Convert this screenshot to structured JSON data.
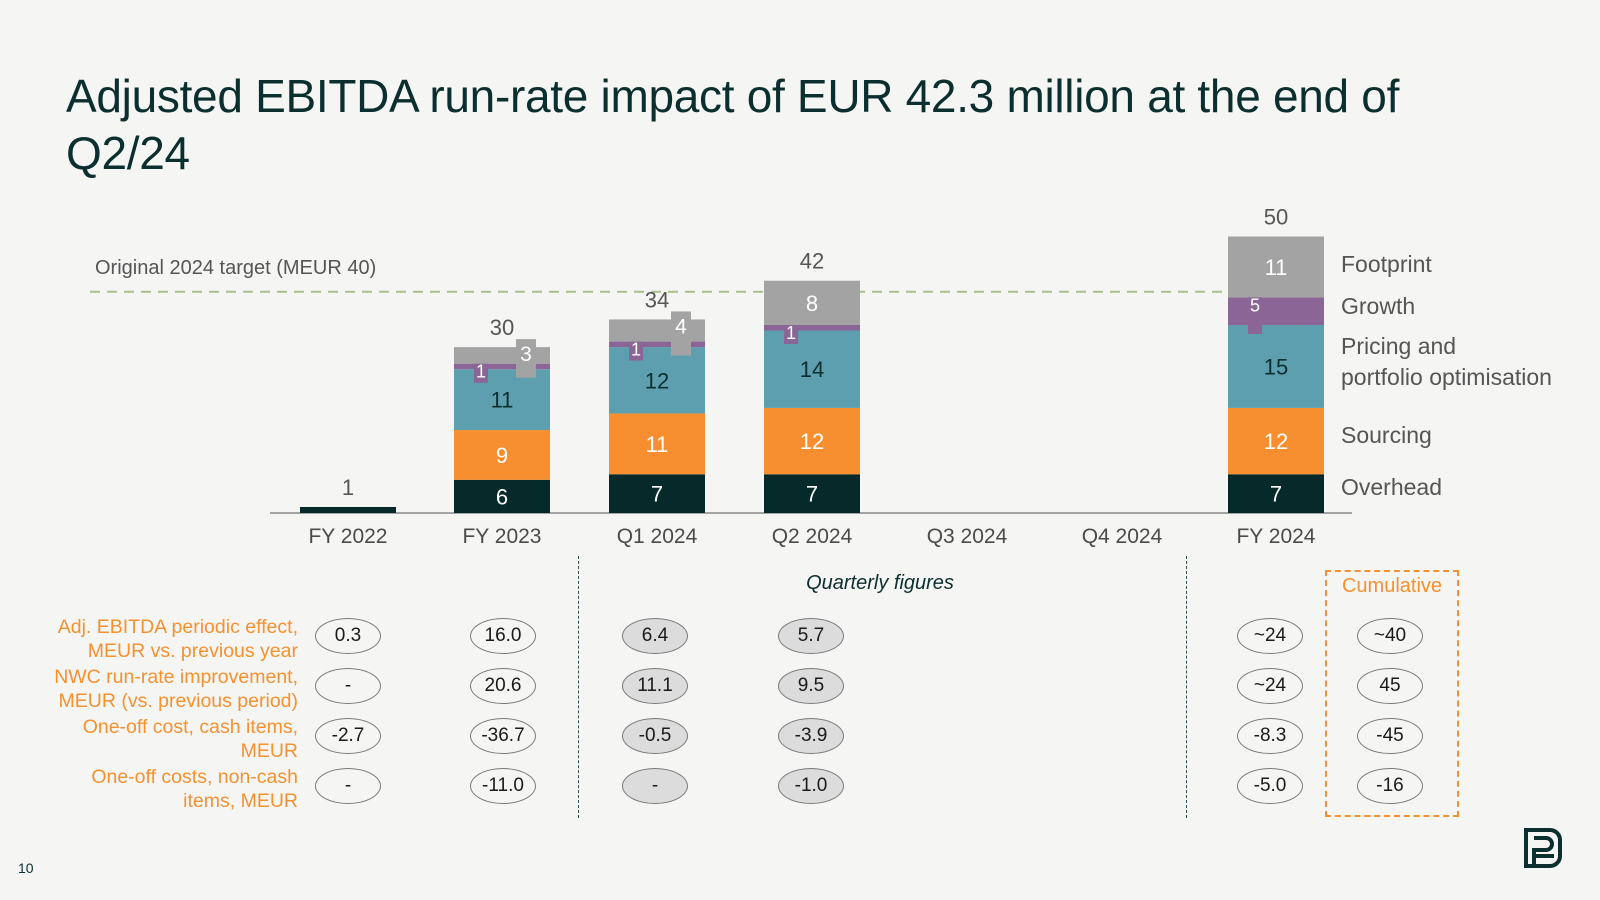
{
  "title": "Adjusted EBITDA run-rate impact of EUR 42.3 million at the end of Q2/24",
  "page_number": "10",
  "colors": {
    "overhead": "#062a2a",
    "sourcing": "#f78f31",
    "pricing": "#5d9fae",
    "growth": "#8b6596",
    "footprint": "#a3a3a3",
    "accent": "#f5912f",
    "target_line": "#a8c08a",
    "text": "#0b2e2e"
  },
  "chart_data": {
    "type": "bar",
    "stacked": true,
    "categories": [
      "FY 2022",
      "FY 2023",
      "Q1 2024",
      "Q2 2024",
      "Q3 2024",
      "Q4 2024",
      "FY 2024"
    ],
    "series": [
      {
        "name": "Overhead",
        "values": [
          1,
          6,
          7,
          7,
          null,
          null,
          7
        ]
      },
      {
        "name": "Sourcing",
        "values": [
          0,
          9,
          11,
          12,
          null,
          null,
          12
        ]
      },
      {
        "name": "Pricing and portfolio optimisation",
        "values": [
          0,
          11,
          12,
          14,
          null,
          null,
          15
        ]
      },
      {
        "name": "Growth",
        "values": [
          0,
          1,
          1,
          1,
          null,
          null,
          5
        ]
      },
      {
        "name": "Footprint",
        "values": [
          0,
          3,
          4,
          8,
          null,
          null,
          11
        ]
      }
    ],
    "segment_labels": [
      [
        "",
        "",
        "",
        "",
        ""
      ],
      [
        "6",
        "9",
        "11",
        "1",
        "3"
      ],
      [
        "7",
        "11",
        "12",
        "1",
        "4"
      ],
      [
        "7",
        "12",
        "14",
        "1",
        "8"
      ],
      [
        "",
        "",
        "",
        "",
        ""
      ],
      [
        "",
        "",
        "",
        "",
        ""
      ],
      [
        "7",
        "12",
        "15",
        "5",
        "11"
      ]
    ],
    "totals": [
      "1",
      "30",
      "34",
      "42",
      "",
      "",
      "50"
    ],
    "target": {
      "value": 40,
      "label": "Original 2024 target (MEUR 40)"
    },
    "legend": [
      "Footprint",
      "Growth",
      "Pricing and\nportfolio optimisation",
      "Sourcing",
      "Overhead"
    ],
    "ylim": [
      0,
      50
    ]
  },
  "table": {
    "quarterly_label": "Quarterly figures",
    "cumulative_label": "Cumulative",
    "rows": [
      {
        "label": "Adj. EBITDA periodic effect,\nMEUR vs. previous year",
        "values": [
          "0.3",
          "16.0",
          "6.4",
          "5.7",
          "~24",
          "~40"
        ]
      },
      {
        "label": "NWC run-rate improvement,\nMEUR (vs. previous period)",
        "values": [
          "-",
          "20.6",
          "11.1",
          "9.5",
          "~24",
          "45"
        ]
      },
      {
        "label": "One-off cost, cash items,\nMEUR",
        "values": [
          "-2.7",
          "-36.7",
          "-0.5",
          "-3.9",
          "-8.3",
          "-45"
        ]
      },
      {
        "label": "One-off costs, non-cash\nitems, MEUR",
        "values": [
          "-",
          "-11.0",
          "-",
          "-1.0",
          "-5.0",
          "-16"
        ]
      }
    ]
  }
}
